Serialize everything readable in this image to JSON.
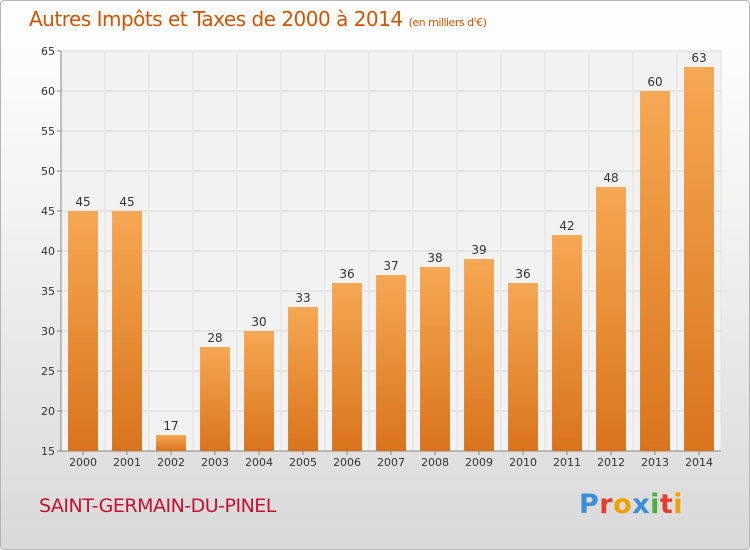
{
  "header": {
    "title": "Autres Impôts et Taxes de 2000 à 2014",
    "unit": "(en milliers d'€)"
  },
  "footer": {
    "city": "SAINT-GERMAIN-DU-PINEL",
    "logo_letters": [
      "P",
      "r",
      "o",
      "x",
      "i",
      "t",
      "i"
    ],
    "logo_colors": [
      "#3a8fd6",
      "#e63c2e",
      "#f2a000",
      "#3a8fd6",
      "#4caf3a",
      "#e63c2e",
      "#f2a000"
    ]
  },
  "colors": {
    "bar_top": "#f6a852",
    "bar_bottom": "#d9741d",
    "title": "#d35400",
    "city": "#c8102e"
  },
  "chart_data": {
    "type": "bar",
    "title": "Autres Impôts et Taxes de 2000 à 2014",
    "subtitle": "(en milliers d'€)",
    "xlabel": "",
    "ylabel": "",
    "categories": [
      "2000",
      "2001",
      "2002",
      "2003",
      "2004",
      "2005",
      "2006",
      "2007",
      "2008",
      "2009",
      "2010",
      "2011",
      "2012",
      "2013",
      "2014"
    ],
    "values": [
      45,
      45,
      17,
      28,
      30,
      33,
      36,
      37,
      38,
      39,
      36,
      42,
      48,
      60,
      63
    ],
    "ylim": [
      15,
      65
    ],
    "yticks": [
      15,
      20,
      25,
      30,
      35,
      40,
      45,
      50,
      55,
      60,
      65
    ],
    "grid": true
  }
}
